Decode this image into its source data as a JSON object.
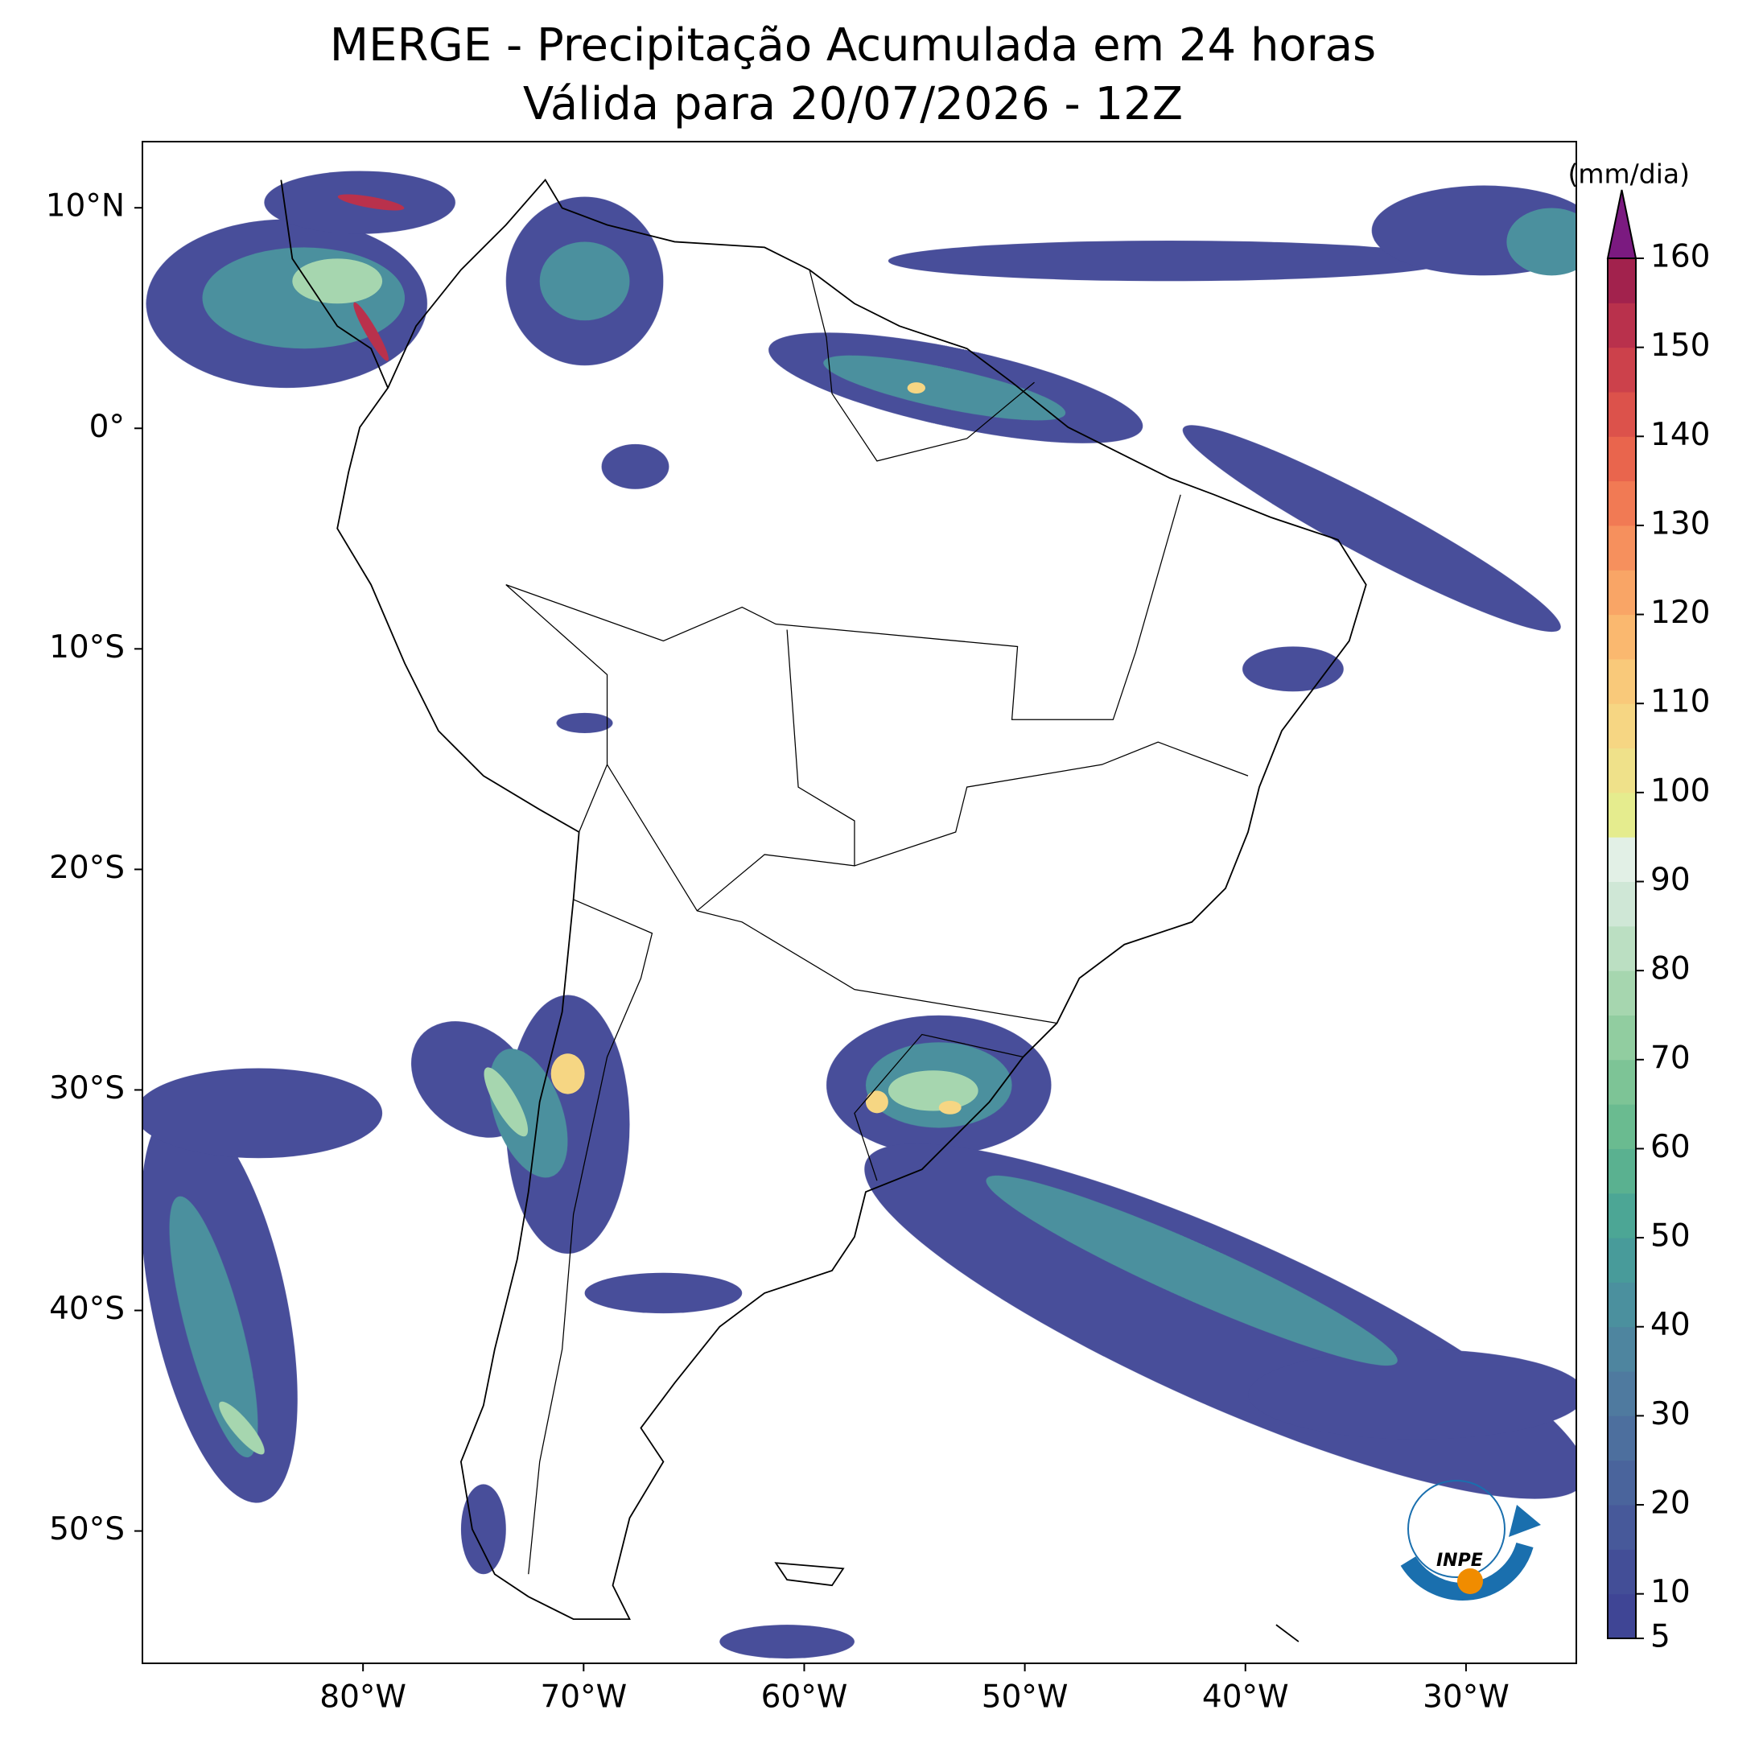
{
  "chart_data": {
    "type": "map",
    "title": "MERGE - Precipitação Acumulada em 24 horas",
    "subtitle": "Válida para 20/07/2026 - 12Z",
    "xlim": [
      -90,
      -25
    ],
    "ylim": [
      -56,
      13
    ],
    "xticks": [
      {
        "value": -80,
        "label": "80°W"
      },
      {
        "value": -70,
        "label": "70°W"
      },
      {
        "value": -60,
        "label": "60°W"
      },
      {
        "value": -50,
        "label": "50°W"
      },
      {
        "value": -40,
        "label": "40°W"
      },
      {
        "value": -30,
        "label": "30°W"
      }
    ],
    "yticks": [
      {
        "value": 10,
        "label": "10°N"
      },
      {
        "value": 0,
        "label": "0°"
      },
      {
        "value": -10,
        "label": "10°S"
      },
      {
        "value": -20,
        "label": "20°S"
      },
      {
        "value": -30,
        "label": "30°S"
      },
      {
        "value": -40,
        "label": "40°S"
      },
      {
        "value": -50,
        "label": "50°S"
      }
    ],
    "colorbar": {
      "label": "(mm/dia)",
      "lim": [
        5,
        160
      ],
      "ticks": [
        5,
        10,
        20,
        30,
        40,
        50,
        60,
        70,
        80,
        90,
        100,
        110,
        120,
        130,
        140,
        150,
        160
      ],
      "colors": [
        "#3f4595",
        "#434e97",
        "#47599a",
        "#4a649c",
        "#4d6f9e",
        "#4f7a9f",
        "#4e859f",
        "#4b909e",
        "#489b9a",
        "#4ca695",
        "#5ab190",
        "#6abb90",
        "#7dc496",
        "#91cda0",
        "#a6d6af",
        "#bbdfc2",
        "#cfe7d6",
        "#e2f0e6",
        "#e5ec8e",
        "#efe18a",
        "#f6d683",
        "#f9c97a",
        "#fab86f",
        "#f9a566",
        "#f6905d",
        "#f17a54",
        "#e9654d",
        "#dc524b",
        "#cc414b",
        "#b9314c",
        "#a2224d"
      ],
      "extend_color": "#7b1a80"
    },
    "logo": "INPE"
  }
}
